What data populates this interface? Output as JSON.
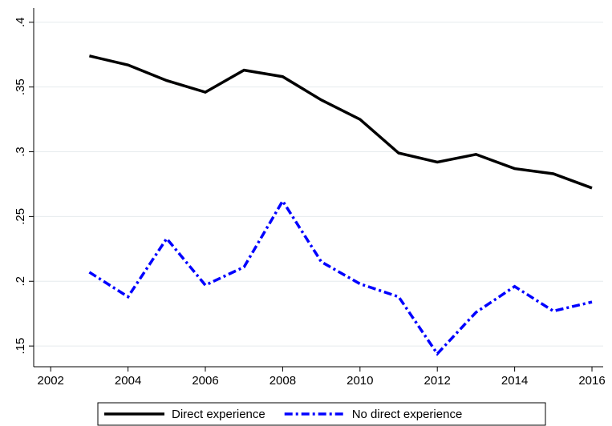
{
  "chart_data": {
    "type": "line",
    "x": [
      2003,
      2004,
      2005,
      2006,
      2007,
      2008,
      2009,
      2010,
      2011,
      2012,
      2013,
      2014,
      2015,
      2016
    ],
    "series": [
      {
        "name": "Direct experience",
        "color": "#000000",
        "dash": "solid",
        "values": [
          0.374,
          0.367,
          0.355,
          0.346,
          0.363,
          0.358,
          0.34,
          0.325,
          0.299,
          0.292,
          0.298,
          0.287,
          0.283,
          0.272
        ]
      },
      {
        "name": "No direct experience",
        "color": "#0000ff",
        "dash": "dashdot",
        "values": [
          0.207,
          0.188,
          0.233,
          0.197,
          0.211,
          0.262,
          0.215,
          0.198,
          0.188,
          0.144,
          0.176,
          0.196,
          0.177,
          0.184
        ]
      }
    ],
    "xlim": [
      2001.56,
      2016.29
    ],
    "xticks": [
      2002,
      2004,
      2006,
      2008,
      2010,
      2012,
      2014,
      2016
    ],
    "ylim": [
      0.134,
      0.411
    ],
    "yticks": [
      {
        "value": 0.15,
        "label": ".15"
      },
      {
        "value": 0.2,
        "label": ".2"
      },
      {
        "value": 0.25,
        "label": ".25"
      },
      {
        "value": 0.3,
        "label": ".3"
      },
      {
        "value": 0.35,
        "label": ".35"
      },
      {
        "value": 0.4,
        "label": ".4"
      }
    ],
    "grid": true,
    "legend": "bottom"
  }
}
